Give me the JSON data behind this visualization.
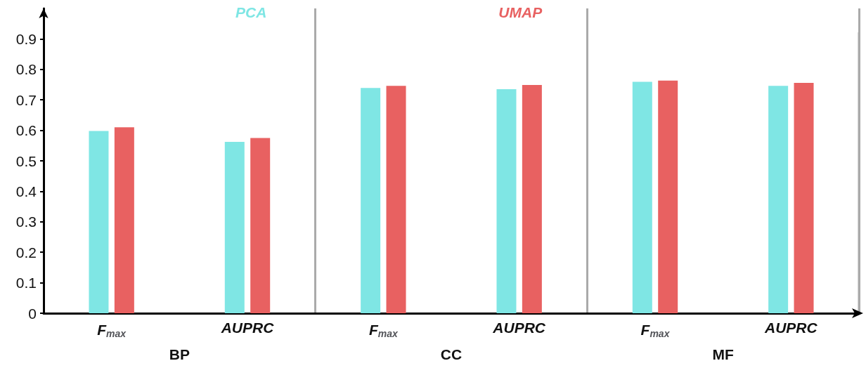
{
  "chart_data": {
    "type": "bar",
    "categories": [
      "F$_{max}$",
      "AUPRC",
      "F$_{max}$",
      "AUPRC",
      "F$_{max}$",
      "AUPRC"
    ],
    "series": [
      {
        "name": "PCA",
        "color": "#7fe6e4",
        "values": [
          0.598,
          0.562,
          0.739,
          0.735,
          0.759,
          0.746
        ]
      },
      {
        "name": "UMAP",
        "color": "#e86161",
        "values": [
          0.61,
          0.575,
          0.746,
          0.749,
          0.763,
          0.756
        ]
      }
    ],
    "annotations": [
      "BP",
      "CC",
      "MF"
    ],
    "ylim": [
      0,
      1
    ],
    "yticks": [
      0,
      0.1,
      0.2,
      0.3,
      0.4,
      0.5,
      0.6,
      0.7,
      0.8,
      0.9
    ],
    "grid": "x",
    "legend": "top"
  }
}
